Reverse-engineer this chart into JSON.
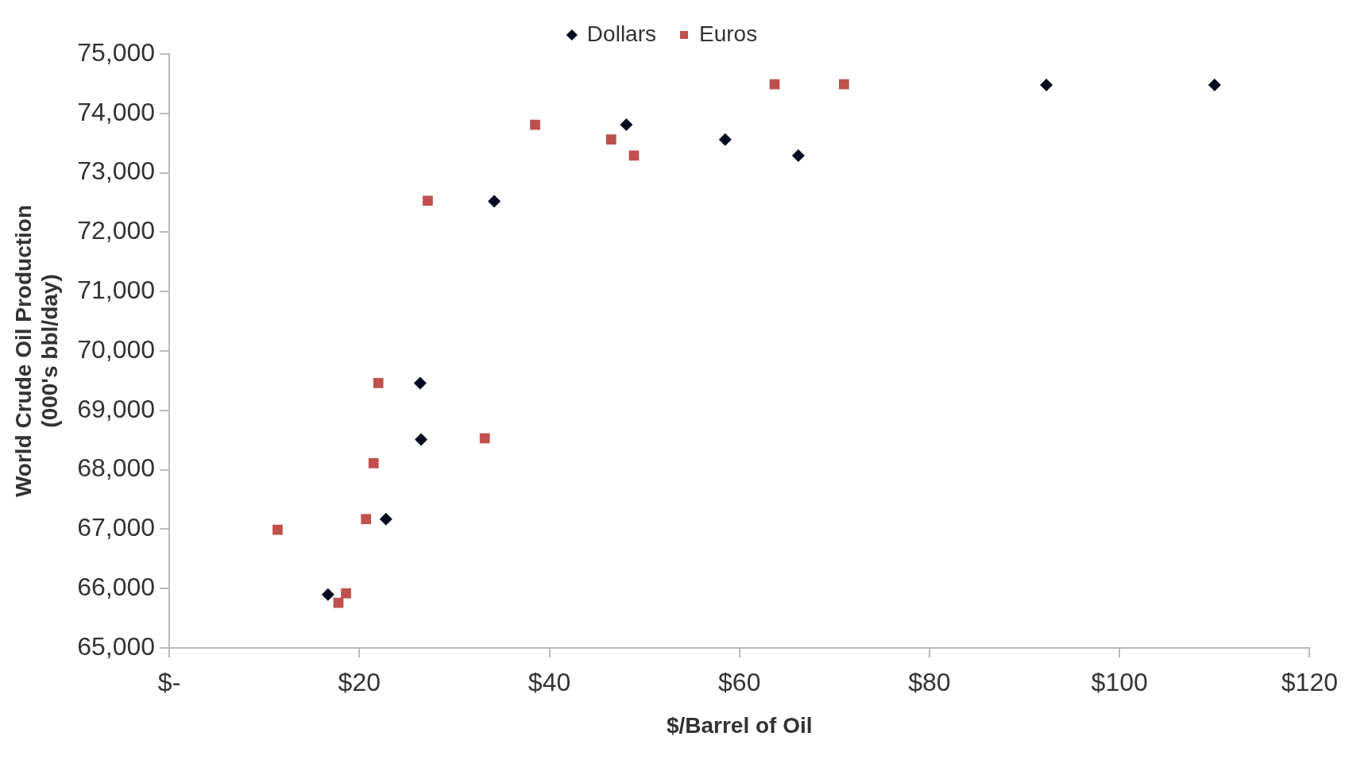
{
  "chart_data": {
    "type": "scatter",
    "xlabel": "$/Barrel of Oil",
    "ylabel": "World Crude Oil Production\n(000's bbl/day)",
    "xlim": [
      0,
      120
    ],
    "xticks": [
      {
        "value": 0,
        "label": "$-"
      },
      {
        "value": 20,
        "label": "$20"
      },
      {
        "value": 40,
        "label": "$40"
      },
      {
        "value": 60,
        "label": "$60"
      },
      {
        "value": 80,
        "label": "$80"
      },
      {
        "value": 100,
        "label": "$100"
      },
      {
        "value": 120,
        "label": "$120"
      }
    ],
    "ylim": [
      65000,
      75000
    ],
    "yticks": [
      {
        "value": 65000,
        "label": "65,000"
      },
      {
        "value": 66000,
        "label": "66,000"
      },
      {
        "value": 67000,
        "label": "67,000"
      },
      {
        "value": 68000,
        "label": "68,000"
      },
      {
        "value": 69000,
        "label": "69,000"
      },
      {
        "value": 70000,
        "label": "70,000"
      },
      {
        "value": 71000,
        "label": "71,000"
      },
      {
        "value": 72000,
        "label": "72,000"
      },
      {
        "value": 73000,
        "label": "73,000"
      },
      {
        "value": 74000,
        "label": "74,000"
      },
      {
        "value": 75000,
        "label": "75,000"
      }
    ],
    "grid": false,
    "legend": "top",
    "series": [
      {
        "name": "Dollars",
        "color": "#000d1f",
        "marker": "diamond",
        "x": [
          16.7,
          22.8,
          26.5,
          26.4,
          34.2,
          48.1,
          58.5,
          66.2,
          92.3,
          110.0
        ],
        "values": [
          65900,
          67170,
          68510,
          69460,
          72520,
          73810,
          73560,
          73290,
          74480,
          74480
        ]
      },
      {
        "name": "Euros",
        "color": "#c0504d",
        "marker": "square",
        "x": [
          11.4,
          17.8,
          18.6,
          20.7,
          21.5,
          22.0,
          27.2,
          33.2,
          38.5,
          46.5,
          48.9,
          63.7,
          71.0
        ],
        "values": [
          66990,
          65760,
          65920,
          67170,
          68110,
          69460,
          72530,
          68530,
          73810,
          73560,
          73290,
          74490,
          74490
        ]
      }
    ]
  }
}
